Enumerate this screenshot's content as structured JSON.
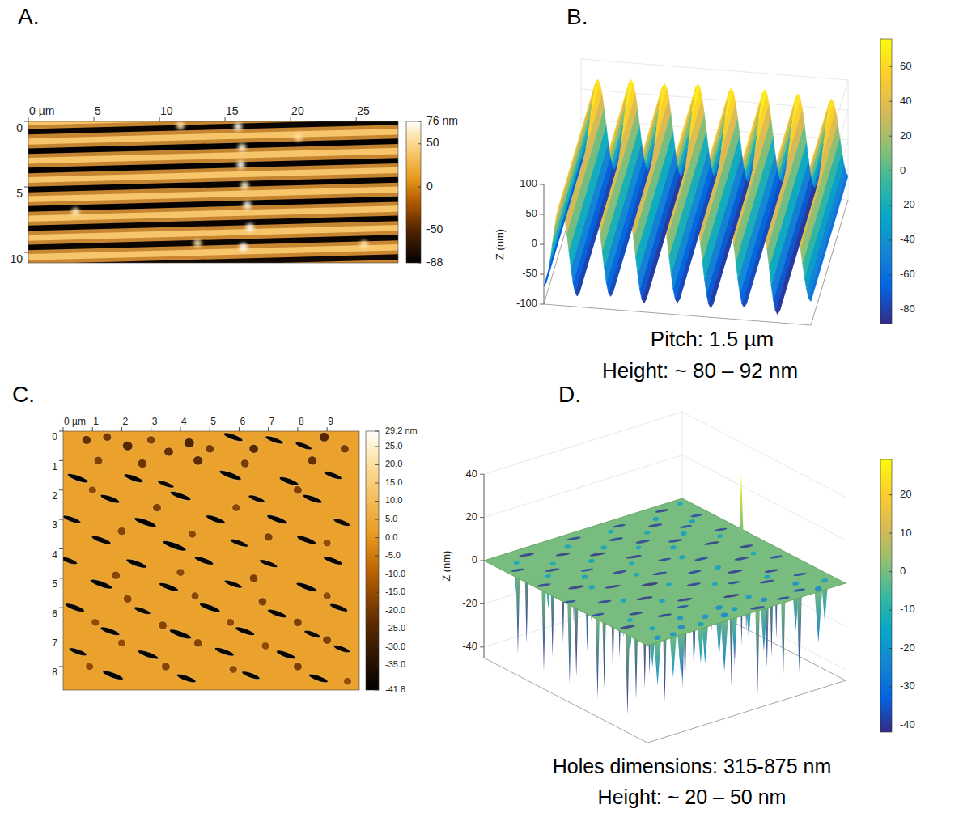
{
  "chart_data": [
    {
      "type": "heatmap",
      "label": "A.",
      "xlim": [
        0,
        28.2
      ],
      "ylim": [
        0,
        10.8
      ],
      "xticks": [
        {
          "value": 0,
          "label": "0 µm"
        },
        5,
        10,
        15,
        20,
        25
      ],
      "yticks": [
        0,
        5,
        10
      ],
      "colorbar": {
        "lim": [
          -88,
          76
        ],
        "ticks": [
          {
            "value": 76,
            "label": "76 nm"
          },
          50,
          0,
          -50,
          -88
        ]
      },
      "ridge_z": 38,
      "grooves": {
        "y_left": [
          0.8,
          2.28,
          3.75,
          5.2,
          6.68,
          8.15,
          9.62,
          11.1
        ],
        "y_right": [
          0.05,
          1.52,
          3.0,
          4.46,
          5.93,
          7.4,
          8.87,
          10.35
        ],
        "depth": [
          -84,
          -88,
          -86,
          -85,
          -87,
          -84,
          -83,
          -80
        ],
        "width": 0.42
      },
      "bumps": [
        [
          16.0,
          0.4,
          70
        ],
        [
          16.3,
          2.0,
          66
        ],
        [
          16.2,
          3.3,
          72
        ],
        [
          16.5,
          4.9,
          64
        ],
        [
          16.7,
          6.4,
          70
        ],
        [
          16.9,
          8.1,
          74
        ],
        [
          16.4,
          9.6,
          76
        ],
        [
          11.6,
          0.3,
          58
        ],
        [
          3.6,
          6.9,
          60
        ],
        [
          25.6,
          9.4,
          58
        ],
        [
          12.9,
          9.3,
          56
        ],
        [
          20.6,
          1.2,
          54
        ]
      ]
    },
    {
      "type": "surface",
      "label": "B.",
      "xlim": [
        0,
        12
      ],
      "ylim": [
        0,
        10
      ],
      "zlim": [
        -100,
        100
      ],
      "zticks": [
        -100,
        -50,
        0,
        50,
        100
      ],
      "zlabel": "Z (nm)",
      "profile": {
        "x": [
          0,
          0.75,
          1.5,
          2.25,
          3,
          3.75,
          4.5,
          5.25,
          6,
          6.75,
          7.5,
          8.25,
          9,
          9.75,
          10.5,
          11.25,
          12
        ],
        "z": [
          -70,
          68,
          -82,
          72,
          -78,
          70,
          -85,
          74,
          -80,
          71,
          -84,
          73,
          -79,
          70,
          -86,
          66,
          -60
        ]
      },
      "colorbar": {
        "lim": [
          -88,
          76
        ],
        "ticks": [
          60,
          40,
          20,
          0,
          -20,
          -40,
          -60,
          -80
        ]
      },
      "caption": [
        "Pitch: 1.5 µm",
        "Height: ~ 80 – 92 nm"
      ]
    },
    {
      "type": "heatmap",
      "label": "C.",
      "xlim": [
        0,
        10.1
      ],
      "ylim": [
        0,
        8.8
      ],
      "xticks": [
        {
          "value": 0,
          "label": "0 µm"
        },
        1,
        2,
        3,
        4,
        5,
        6,
        7,
        8,
        9
      ],
      "yticks": [
        0,
        1,
        2,
        3,
        4,
        5,
        6,
        7,
        8
      ],
      "colorbar": {
        "lim": [
          -41.8,
          29.2
        ],
        "ticks": [
          {
            "value": 29.2,
            "label": "29.2 nm"
          },
          {
            "value": 25,
            "label": "25.0"
          },
          {
            "value": 20,
            "label": "20.0"
          },
          {
            "value": 15,
            "label": "15.0"
          },
          {
            "value": 10,
            "label": "10.0"
          },
          {
            "value": 5,
            "label": "5.0"
          },
          {
            "value": 0,
            "label": "0.0"
          },
          {
            "value": -5,
            "label": "-5.0"
          },
          {
            "value": -10,
            "label": "-10.0"
          },
          {
            "value": -15,
            "label": "-15.0"
          },
          {
            "value": -20,
            "label": "-20.0"
          },
          {
            "value": -25,
            "label": "-25.0"
          },
          {
            "value": -30,
            "label": "-30.0"
          },
          {
            "value": -35,
            "label": "-35.0"
          },
          -41.8
        ]
      },
      "surface_z": 3,
      "holes": [
        [
          5.8,
          0.2,
          0.7,
          0.18,
          -40
        ],
        [
          7.2,
          0.3,
          0.65,
          0.17,
          -39
        ],
        [
          8.2,
          0.5,
          0.6,
          0.17,
          -38
        ],
        [
          0.5,
          1.6,
          0.75,
          0.18,
          -41
        ],
        [
          2.4,
          1.6,
          0.7,
          0.18,
          -40
        ],
        [
          3.5,
          1.8,
          0.6,
          0.16,
          -38
        ],
        [
          5.7,
          1.5,
          0.8,
          0.19,
          -41.5
        ],
        [
          7.7,
          1.7,
          0.7,
          0.18,
          -40
        ],
        [
          9.2,
          1.5,
          0.65,
          0.17,
          -39
        ],
        [
          1.6,
          2.3,
          0.7,
          0.18,
          -40
        ],
        [
          4.0,
          2.2,
          0.75,
          0.18,
          -41
        ],
        [
          6.6,
          2.3,
          0.6,
          0.17,
          -39
        ],
        [
          8.5,
          2.3,
          0.7,
          0.18,
          -40
        ],
        [
          0.3,
          3.0,
          0.65,
          0.17,
          -39
        ],
        [
          2.8,
          3.1,
          0.8,
          0.19,
          -41.8
        ],
        [
          5.2,
          3.0,
          0.7,
          0.18,
          -40
        ],
        [
          7.3,
          3.0,
          0.75,
          0.18,
          -41
        ],
        [
          9.5,
          3.1,
          0.6,
          0.17,
          -38
        ],
        [
          1.3,
          3.7,
          0.7,
          0.18,
          -40
        ],
        [
          3.8,
          3.9,
          0.85,
          0.2,
          -41.8
        ],
        [
          6.0,
          3.8,
          0.65,
          0.17,
          -39
        ],
        [
          8.3,
          3.7,
          0.7,
          0.18,
          -40
        ],
        [
          0.2,
          4.4,
          0.6,
          0.17,
          -38
        ],
        [
          2.5,
          4.5,
          0.75,
          0.18,
          -41
        ],
        [
          4.8,
          4.4,
          0.7,
          0.18,
          -40
        ],
        [
          7.0,
          4.5,
          0.65,
          0.17,
          -39
        ],
        [
          9.2,
          4.4,
          0.7,
          0.18,
          -40
        ],
        [
          1.3,
          5.2,
          0.8,
          0.19,
          -41.5
        ],
        [
          3.6,
          5.3,
          0.7,
          0.18,
          -40
        ],
        [
          5.8,
          5.2,
          0.65,
          0.17,
          -39
        ],
        [
          8.3,
          5.3,
          0.75,
          0.18,
          -41
        ],
        [
          0.4,
          6.0,
          0.7,
          0.18,
          -40
        ],
        [
          2.7,
          6.1,
          0.6,
          0.17,
          -38
        ],
        [
          5.0,
          6.0,
          0.75,
          0.18,
          -41
        ],
        [
          7.3,
          6.2,
          0.7,
          0.18,
          -40
        ],
        [
          9.4,
          6.0,
          0.65,
          0.17,
          -39
        ],
        [
          1.6,
          6.8,
          0.7,
          0.18,
          -40
        ],
        [
          4.0,
          6.9,
          0.8,
          0.19,
          -41.5
        ],
        [
          6.2,
          6.8,
          0.7,
          0.18,
          -40
        ],
        [
          8.5,
          6.9,
          0.6,
          0.17,
          -38
        ],
        [
          0.5,
          7.5,
          0.65,
          0.17,
          -39
        ],
        [
          2.9,
          7.6,
          0.75,
          0.18,
          -41
        ],
        [
          5.5,
          7.5,
          0.7,
          0.18,
          -40
        ],
        [
          7.6,
          7.6,
          0.7,
          0.18,
          -40
        ],
        [
          9.5,
          7.4,
          0.6,
          0.17,
          -38
        ],
        [
          1.7,
          8.3,
          0.75,
          0.18,
          -41
        ],
        [
          4.2,
          8.4,
          0.7,
          0.18,
          -40
        ],
        [
          6.4,
          8.3,
          0.65,
          0.17,
          -39
        ],
        [
          8.7,
          8.4,
          0.7,
          0.18,
          -40
        ],
        [
          0.8,
          0.3,
          0.32,
          0.3,
          -22
        ],
        [
          1.5,
          0.2,
          0.3,
          0.28,
          -20
        ],
        [
          2.2,
          0.5,
          0.35,
          0.32,
          -25
        ],
        [
          3.0,
          0.3,
          0.3,
          0.28,
          -18
        ],
        [
          3.6,
          0.7,
          0.33,
          0.3,
          -22
        ],
        [
          4.3,
          0.4,
          0.35,
          0.33,
          -26
        ],
        [
          5.0,
          0.6,
          0.3,
          0.28,
          -20
        ],
        [
          6.5,
          0.6,
          0.32,
          0.3,
          -24
        ],
        [
          8.9,
          0.2,
          0.34,
          0.32,
          -25
        ],
        [
          9.6,
          0.6,
          0.3,
          0.28,
          -19
        ],
        [
          1.2,
          1.0,
          0.3,
          0.28,
          -18
        ],
        [
          2.7,
          1.1,
          0.32,
          0.3,
          -21
        ],
        [
          4.6,
          1.0,
          0.34,
          0.31,
          -23
        ],
        [
          6.2,
          1.1,
          0.3,
          0.28,
          -19
        ],
        [
          8.5,
          1.0,
          0.32,
          0.3,
          -22
        ],
        [
          1.0,
          2.0,
          0.28,
          0.26,
          -16
        ],
        [
          3.2,
          2.6,
          0.3,
          0.28,
          -18
        ],
        [
          5.9,
          2.6,
          0.28,
          0.26,
          -16
        ],
        [
          8.0,
          2.0,
          0.3,
          0.28,
          -18
        ],
        [
          2.0,
          3.4,
          0.3,
          0.28,
          -17
        ],
        [
          4.4,
          3.5,
          0.28,
          0.26,
          -16
        ],
        [
          7.0,
          3.6,
          0.3,
          0.28,
          -18
        ],
        [
          9.0,
          3.8,
          0.28,
          0.26,
          -15
        ],
        [
          1.8,
          4.9,
          0.3,
          0.28,
          -17
        ],
        [
          4.0,
          4.8,
          0.28,
          0.26,
          -16
        ],
        [
          6.5,
          5.0,
          0.3,
          0.28,
          -18
        ],
        [
          9.0,
          5.6,
          0.28,
          0.26,
          -15
        ],
        [
          2.2,
          5.7,
          0.3,
          0.28,
          -17
        ],
        [
          4.5,
          5.6,
          0.28,
          0.26,
          -16
        ],
        [
          6.8,
          5.8,
          0.3,
          0.28,
          -18
        ],
        [
          1.1,
          6.5,
          0.28,
          0.26,
          -15
        ],
        [
          3.4,
          6.6,
          0.3,
          0.28,
          -17
        ],
        [
          5.7,
          6.5,
          0.28,
          0.26,
          -16
        ],
        [
          8.0,
          6.5,
          0.3,
          0.28,
          -18
        ],
        [
          2.0,
          7.2,
          0.28,
          0.26,
          -15
        ],
        [
          4.6,
          7.2,
          0.3,
          0.28,
          -17
        ],
        [
          6.9,
          7.3,
          0.28,
          0.26,
          -16
        ],
        [
          9.0,
          7.1,
          0.3,
          0.28,
          -18
        ],
        [
          0.9,
          8.0,
          0.28,
          0.26,
          -15
        ],
        [
          3.5,
          8.0,
          0.3,
          0.28,
          -17
        ],
        [
          5.8,
          8.1,
          0.28,
          0.26,
          -16
        ],
        [
          8.0,
          8.0,
          0.3,
          0.28,
          -18
        ],
        [
          9.7,
          8.5,
          0.28,
          0.26,
          -15
        ]
      ]
    },
    {
      "type": "surface",
      "label": "D.",
      "zlim": [
        -45,
        40
      ],
      "zticks": [
        -40,
        -20,
        0,
        20,
        40
      ],
      "zlabel": "Z (nm)",
      "surface_z": 0,
      "peak": [
        9.8,
        5.3,
        28
      ],
      "colorbar": {
        "lim": [
          -41.8,
          29.2
        ],
        "ticks": [
          20,
          10,
          0,
          -10,
          -20,
          -30,
          -40
        ]
      },
      "caption": [
        "Holes dimensions: 315-875 nm",
        "Height: ~ 20 – 50 nm"
      ]
    }
  ]
}
